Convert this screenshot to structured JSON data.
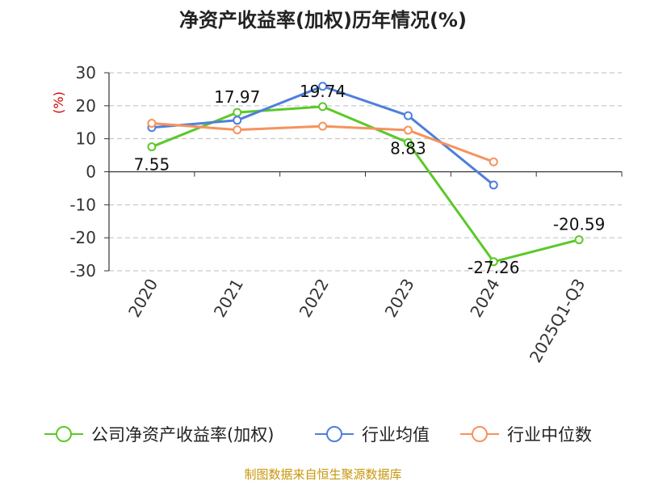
{
  "chart_data": {
    "type": "line",
    "title": "净资产收益率(加权)历年情况(%)",
    "ylabel": "(%)",
    "xlabel": "",
    "categories": [
      "2020",
      "2021",
      "2022",
      "2023",
      "2024",
      "2025Q1-Q3"
    ],
    "ylim": [
      -30,
      30
    ],
    "yticks": [
      30,
      20,
      10,
      0,
      -10,
      -20,
      -30
    ],
    "grid": "horizontal dashed",
    "legend_position": "bottom",
    "series": [
      {
        "name": "公司净资产收益率(加权)",
        "color": "#5cc82a",
        "values": [
          7.55,
          17.97,
          19.74,
          8.83,
          -27.26,
          -20.59
        ],
        "labels": [
          "7.55",
          "17.97",
          "19.74",
          "8.83",
          "-27.26",
          "-20.59"
        ]
      },
      {
        "name": "行业均值",
        "color": "#4f7fdc",
        "values": [
          13.4,
          15.6,
          25.9,
          17.0,
          -4.0,
          null
        ]
      },
      {
        "name": "行业中位数",
        "color": "#f5935c",
        "values": [
          14.7,
          12.7,
          13.8,
          12.6,
          3.0,
          null
        ]
      }
    ]
  },
  "footer": {
    "source": "制图数据来自恒生聚源数据库"
  }
}
